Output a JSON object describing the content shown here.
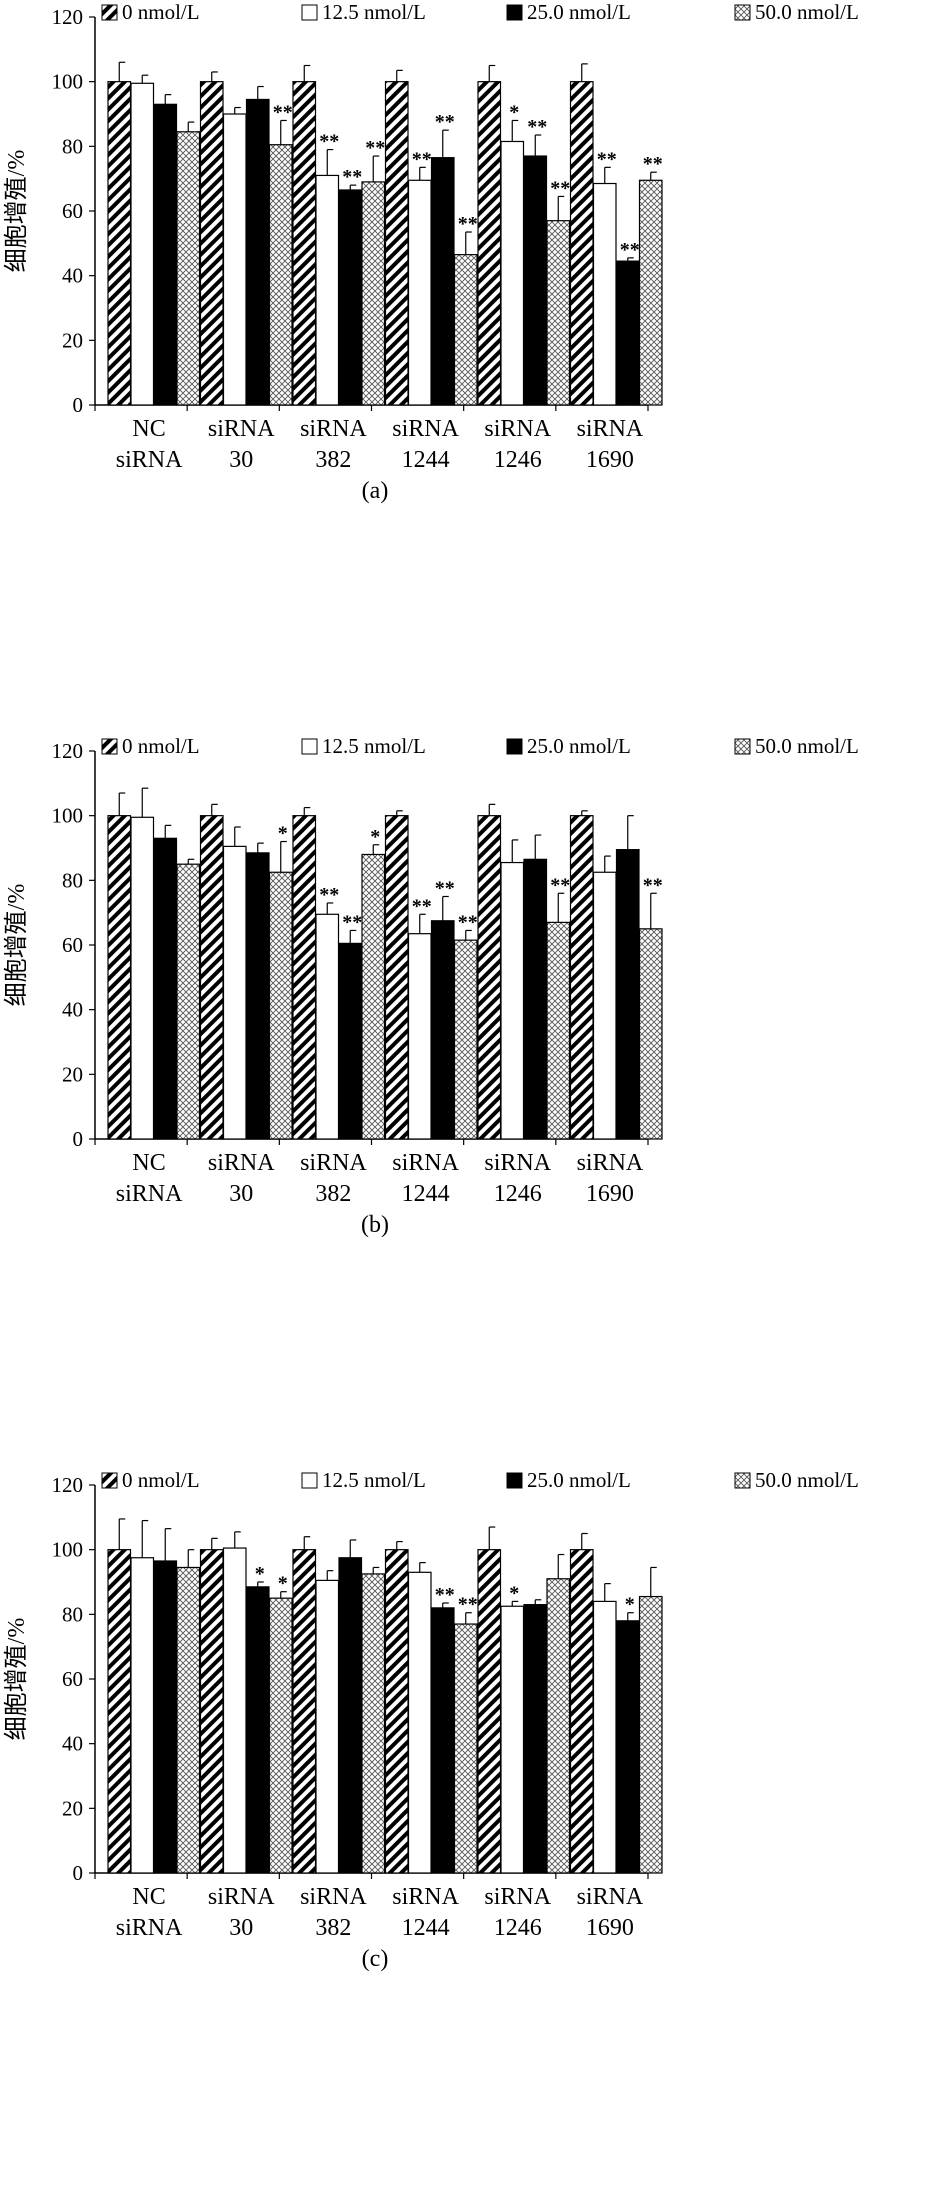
{
  "chart_data": [
    {
      "type": "bar",
      "panel_label": "(a)",
      "ylabel": "细胞增殖/%",
      "ylim": [
        0,
        120
      ],
      "yticks": [
        0,
        20,
        40,
        60,
        80,
        100,
        120
      ],
      "categories": [
        [
          "NC",
          "siRNA"
        ],
        [
          "siRNA",
          "30"
        ],
        [
          "siRNA",
          "382"
        ],
        [
          "siRNA",
          "1244"
        ],
        [
          "siRNA",
          "1246"
        ],
        [
          "siRNA",
          "1690"
        ]
      ],
      "legend_position": "top",
      "series": [
        {
          "name": "0 nmol/L",
          "pattern": "diagonal-stripes",
          "values": [
            100,
            100,
            100,
            100,
            100,
            100
          ],
          "errors": [
            6,
            3,
            5,
            3.5,
            5,
            5.5
          ],
          "sig": [
            "",
            "",
            "",
            "",
            "",
            ""
          ]
        },
        {
          "name": "12.5 nmol/L",
          "pattern": "white",
          "values": [
            99.5,
            90,
            71,
            69.5,
            81.5,
            68.5
          ],
          "errors": [
            2.5,
            2,
            8,
            4,
            6.5,
            5
          ],
          "sig": [
            "",
            "",
            "**",
            "**",
            "*",
            "**"
          ]
        },
        {
          "name": "25.0 nmol/L",
          "pattern": "black",
          "values": [
            93,
            94.5,
            66.5,
            76.5,
            77,
            44.5
          ],
          "errors": [
            3,
            4,
            1.5,
            8.5,
            6.5,
            1
          ],
          "sig": [
            "",
            "",
            "**",
            "**",
            "**",
            "**"
          ]
        },
        {
          "name": "50.0 nmol/L",
          "pattern": "crosshatch",
          "values": [
            84.5,
            80.5,
            69,
            46.5,
            57,
            69.5
          ],
          "errors": [
            3,
            7.5,
            8,
            7,
            7.5,
            2.5
          ],
          "sig": [
            "",
            "**",
            "**",
            "**",
            "**",
            "**"
          ]
        }
      ]
    },
    {
      "type": "bar",
      "panel_label": "(b)",
      "ylabel": "细胞增殖/%",
      "ylim": [
        0,
        120
      ],
      "yticks": [
        0,
        20,
        40,
        60,
        80,
        100,
        120
      ],
      "categories": [
        [
          "NC",
          "siRNA"
        ],
        [
          "siRNA",
          "30"
        ],
        [
          "siRNA",
          "382"
        ],
        [
          "siRNA",
          "1244"
        ],
        [
          "siRNA",
          "1246"
        ],
        [
          "siRNA",
          "1690"
        ]
      ],
      "legend_position": "top",
      "series": [
        {
          "name": "0 nmol/L",
          "pattern": "diagonal-stripes",
          "values": [
            100,
            100,
            100,
            100,
            100,
            100
          ],
          "errors": [
            7,
            3.5,
            2.5,
            1.5,
            3.5,
            1.5
          ],
          "sig": [
            "",
            "",
            "",
            "",
            "",
            ""
          ]
        },
        {
          "name": "12.5 nmol/L",
          "pattern": "white",
          "values": [
            99.5,
            90.5,
            69.5,
            63.5,
            85.5,
            82.5
          ],
          "errors": [
            9,
            6,
            3.5,
            6,
            7,
            5
          ],
          "sig": [
            "",
            "",
            "**",
            "**",
            "",
            ""
          ]
        },
        {
          "name": "25.0 nmol/L",
          "pattern": "black",
          "values": [
            93,
            88.5,
            60.5,
            67.5,
            86.5,
            89.5
          ],
          "errors": [
            4,
            3,
            4,
            7.5,
            7.5,
            10.5
          ],
          "sig": [
            "",
            "",
            "**",
            "**",
            "",
            ""
          ]
        },
        {
          "name": "50.0 nmol/L",
          "pattern": "crosshatch",
          "values": [
            85,
            82.5,
            88,
            61.5,
            67,
            65
          ],
          "errors": [
            1.5,
            9.5,
            3,
            3,
            9,
            11
          ],
          "sig": [
            "",
            "*",
            "*",
            "**",
            "**",
            "**"
          ]
        }
      ]
    },
    {
      "type": "bar",
      "panel_label": "(c)",
      "ylabel": "细胞增殖/%",
      "ylim": [
        0,
        120
      ],
      "yticks": [
        0,
        20,
        40,
        60,
        80,
        100,
        120
      ],
      "categories": [
        [
          "NC",
          "siRNA"
        ],
        [
          "siRNA",
          "30"
        ],
        [
          "siRNA",
          "382"
        ],
        [
          "siRNA",
          "1244"
        ],
        [
          "siRNA",
          "1246"
        ],
        [
          "siRNA",
          "1690"
        ]
      ],
      "legend_position": "top",
      "series": [
        {
          "name": "0 nmol/L",
          "pattern": "diagonal-stripes",
          "values": [
            100,
            100,
            100,
            100,
            100,
            100
          ],
          "errors": [
            9.5,
            3.5,
            4,
            2.5,
            7,
            5
          ],
          "sig": [
            "",
            "",
            "",
            "",
            "",
            ""
          ]
        },
        {
          "name": "12.5 nmol/L",
          "pattern": "white",
          "values": [
            97.5,
            100.5,
            90.5,
            93,
            82.5,
            84
          ],
          "errors": [
            11.5,
            5,
            3,
            3,
            1.5,
            5.5
          ],
          "sig": [
            "",
            "",
            "",
            "",
            "*",
            ""
          ]
        },
        {
          "name": "25.0 nmol/L",
          "pattern": "black",
          "values": [
            96.5,
            88.5,
            97.5,
            82,
            83,
            78
          ],
          "errors": [
            10,
            1.5,
            5.5,
            1.5,
            1.5,
            2.5
          ],
          "sig": [
            "",
            "*",
            "",
            "**",
            "",
            "*"
          ]
        },
        {
          "name": "50.0 nmol/L",
          "pattern": "crosshatch",
          "values": [
            94.5,
            85,
            92.5,
            77,
            91,
            85.5
          ],
          "errors": [
            5.5,
            2,
            2,
            3.5,
            7.5,
            9
          ],
          "sig": [
            "",
            "*",
            "",
            "**",
            "",
            ""
          ]
        }
      ]
    }
  ]
}
